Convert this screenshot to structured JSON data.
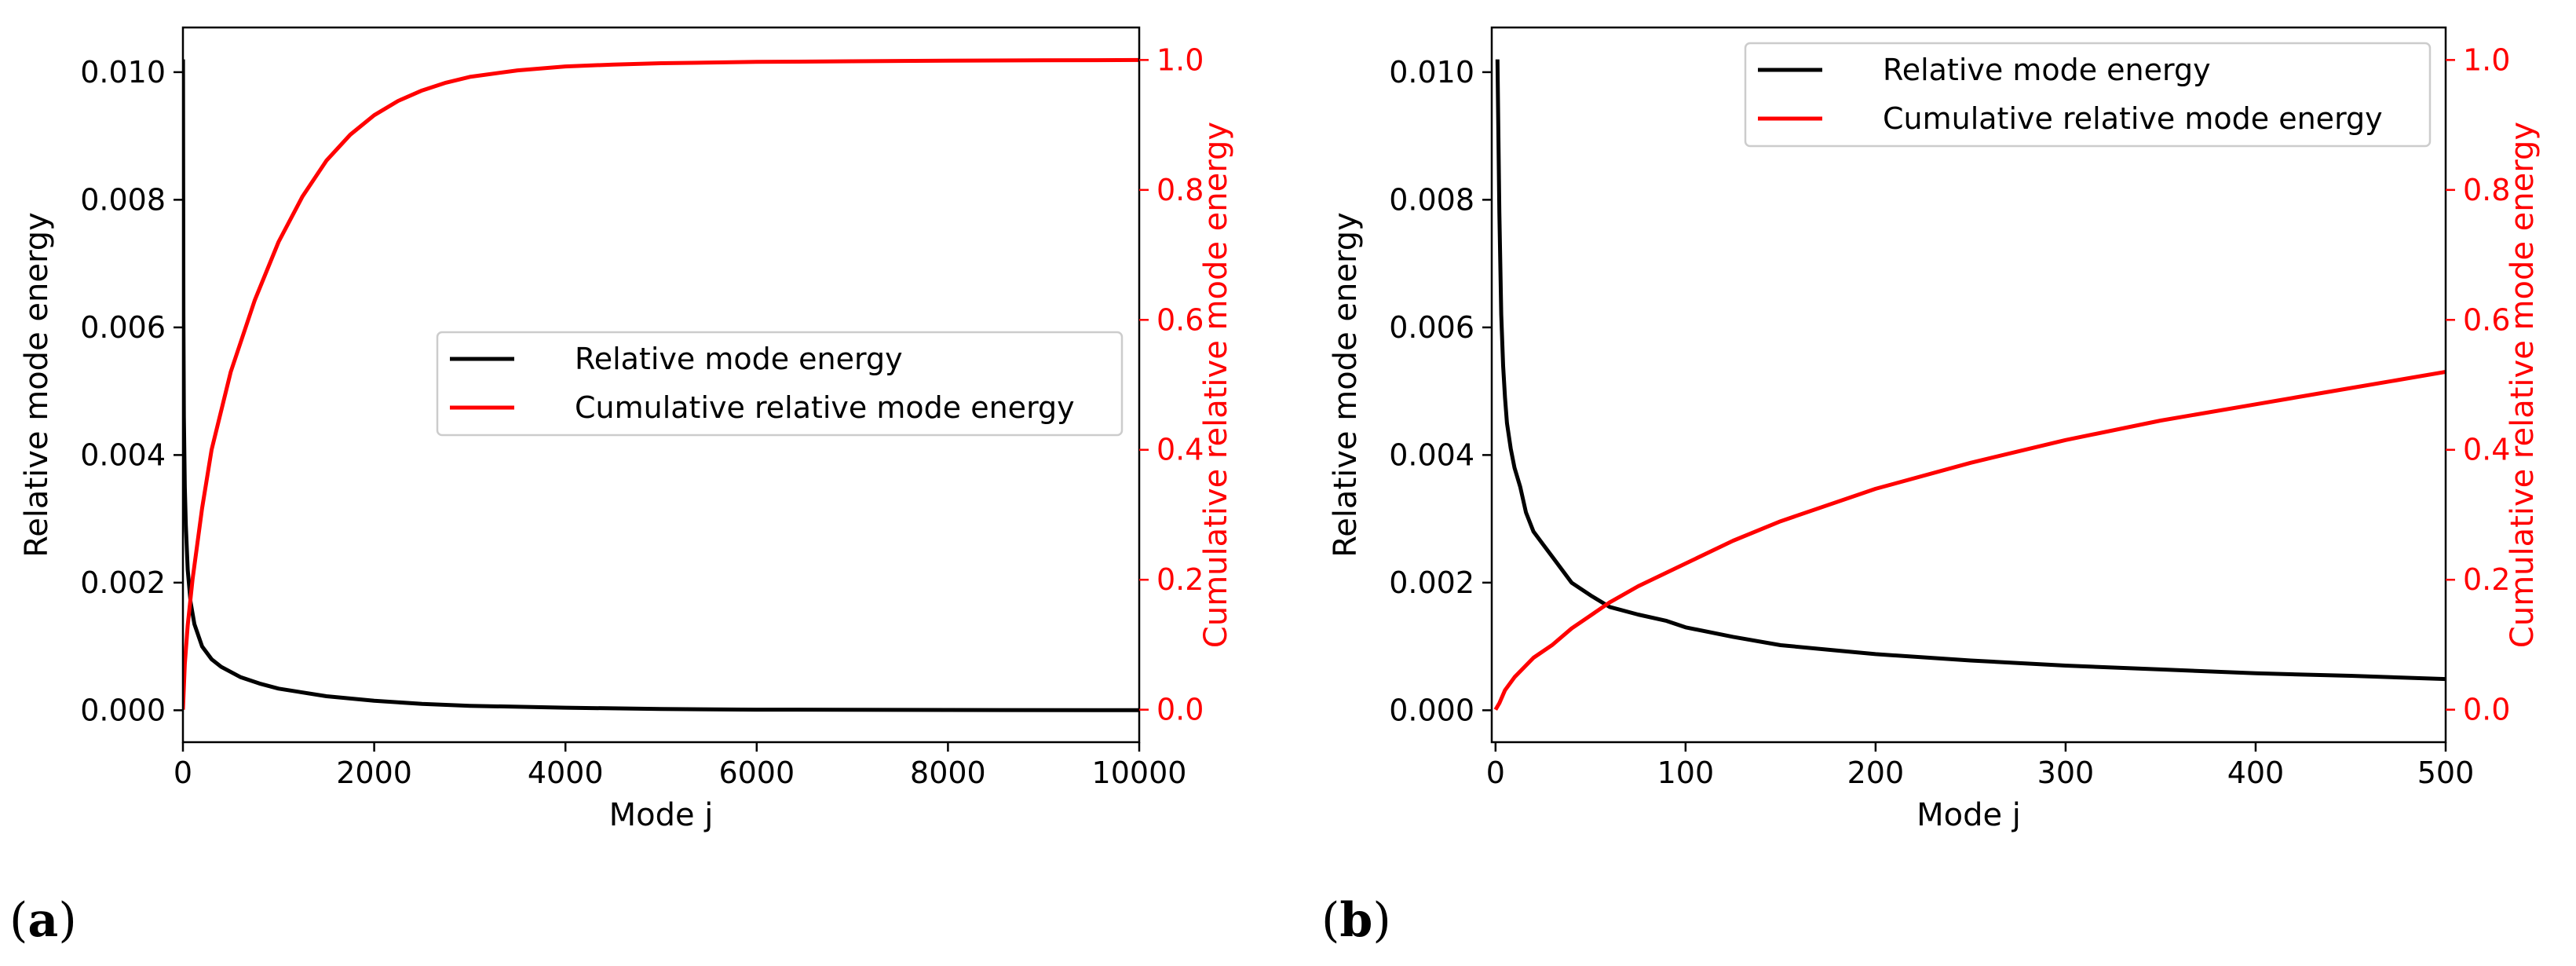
{
  "chart_data": [
    {
      "type": "line",
      "panel_label": "a",
      "xlabel": "Mode j",
      "ylabel_left": "Relative mode energy",
      "ylabel_right": "Cumulative relative mode energy",
      "xlim": [
        0,
        10000
      ],
      "ylim_left": [
        -0.0005,
        0.0107
      ],
      "ylim_right": [
        -0.05,
        1.05
      ],
      "xticks": [
        0,
        2000,
        4000,
        6000,
        8000,
        10000
      ],
      "xtick_labels": [
        "0",
        "2000",
        "4000",
        "6000",
        "8000",
        "10000"
      ],
      "yticks_left": [
        0.0,
        0.002,
        0.004,
        0.006,
        0.008,
        0.01
      ],
      "ytick_labels_left": [
        "0.000",
        "0.002",
        "0.004",
        "0.006",
        "0.008",
        "0.010"
      ],
      "yticks_right": [
        0.0,
        0.2,
        0.4,
        0.6,
        0.8,
        1.0
      ],
      "ytick_labels_right": [
        "0.0",
        "0.2",
        "0.4",
        "0.6",
        "0.8",
        "1.0"
      ],
      "legend": [
        "Relative mode energy",
        "Cumulative relative mode energy"
      ],
      "legend_loc": "center-right",
      "series": [
        {
          "name": "Relative mode energy",
          "color": "#000000",
          "axis": "left",
          "x": [
            1,
            5,
            10,
            20,
            30,
            50,
            80,
            120,
            200,
            300,
            400,
            600,
            800,
            1000,
            1500,
            2000,
            2500,
            3000,
            4000,
            5000,
            6000,
            8000,
            10000
          ],
          "y": [
            0.0102,
            0.0062,
            0.0046,
            0.0035,
            0.0029,
            0.0022,
            0.0017,
            0.00135,
            0.001,
            0.0008,
            0.00068,
            0.00052,
            0.00042,
            0.00034,
            0.00022,
            0.00015,
            0.0001,
            7e-05,
            4e-05,
            2e-05,
            1e-05,
            4e-06,
            1e-06
          ]
        },
        {
          "name": "Cumulative relative mode energy",
          "color": "#ff0000",
          "axis": "right",
          "x": [
            0,
            20,
            50,
            100,
            200,
            300,
            500,
            750,
            1000,
            1250,
            1500,
            1750,
            2000,
            2250,
            2500,
            2750,
            3000,
            3500,
            4000,
            4500,
            5000,
            6000,
            7000,
            8000,
            9000,
            10000
          ],
          "y": [
            0.0,
            0.07,
            0.13,
            0.2,
            0.31,
            0.4,
            0.52,
            0.63,
            0.72,
            0.79,
            0.845,
            0.885,
            0.915,
            0.937,
            0.953,
            0.965,
            0.974,
            0.984,
            0.99,
            0.993,
            0.995,
            0.997,
            0.998,
            0.999,
            0.9995,
            1.0
          ]
        }
      ]
    },
    {
      "type": "line",
      "panel_label": "b",
      "xlabel": "Mode j",
      "ylabel_left": "Relative mode energy",
      "ylabel_right": "Cumulative relative mode energy",
      "xlim": [
        -2,
        500
      ],
      "ylim_left": [
        -0.0005,
        0.0107
      ],
      "ylim_right": [
        -0.05,
        1.05
      ],
      "xticks": [
        0,
        100,
        200,
        300,
        400,
        500
      ],
      "xtick_labels": [
        "0",
        "100",
        "200",
        "300",
        "400",
        "500"
      ],
      "yticks_left": [
        0.0,
        0.002,
        0.004,
        0.006,
        0.008,
        0.01
      ],
      "ytick_labels_left": [
        "0.000",
        "0.002",
        "0.004",
        "0.006",
        "0.008",
        "0.010"
      ],
      "yticks_right": [
        0.0,
        0.2,
        0.4,
        0.6,
        0.8,
        1.0
      ],
      "ytick_labels_right": [
        "0.0",
        "0.2",
        "0.4",
        "0.6",
        "0.8",
        "1.0"
      ],
      "legend": [
        "Relative mode energy",
        "Cumulative relative mode energy"
      ],
      "legend_loc": "upper-right",
      "series": [
        {
          "name": "Relative mode energy",
          "color": "#000000",
          "axis": "left",
          "x": [
            1,
            2,
            3,
            4,
            5,
            6,
            8,
            10,
            13,
            16,
            20,
            25,
            30,
            35,
            40,
            50,
            60,
            75,
            90,
            100,
            125,
            150,
            175,
            200,
            250,
            300,
            350,
            400,
            450,
            500
          ],
          "y": [
            0.0102,
            0.0078,
            0.0062,
            0.0054,
            0.0049,
            0.0045,
            0.0041,
            0.0038,
            0.0035,
            0.0031,
            0.0028,
            0.0026,
            0.0024,
            0.0022,
            0.002,
            0.0018,
            0.00162,
            0.0015,
            0.0014,
            0.0013,
            0.00115,
            0.00102,
            0.00095,
            0.00088,
            0.00078,
            0.0007,
            0.00064,
            0.00058,
            0.00054,
            0.00049
          ]
        },
        {
          "name": "Cumulative relative mode energy",
          "color": "#ff0000",
          "axis": "right",
          "x": [
            0,
            2,
            5,
            10,
            15,
            20,
            30,
            40,
            50,
            60,
            75,
            100,
            125,
            150,
            200,
            250,
            300,
            350,
            400,
            450,
            500
          ],
          "y": [
            0.0,
            0.01,
            0.03,
            0.05,
            0.065,
            0.08,
            0.1,
            0.125,
            0.145,
            0.165,
            0.19,
            0.225,
            0.26,
            0.29,
            0.34,
            0.38,
            0.415,
            0.445,
            0.47,
            0.495,
            0.52
          ]
        }
      ]
    }
  ]
}
